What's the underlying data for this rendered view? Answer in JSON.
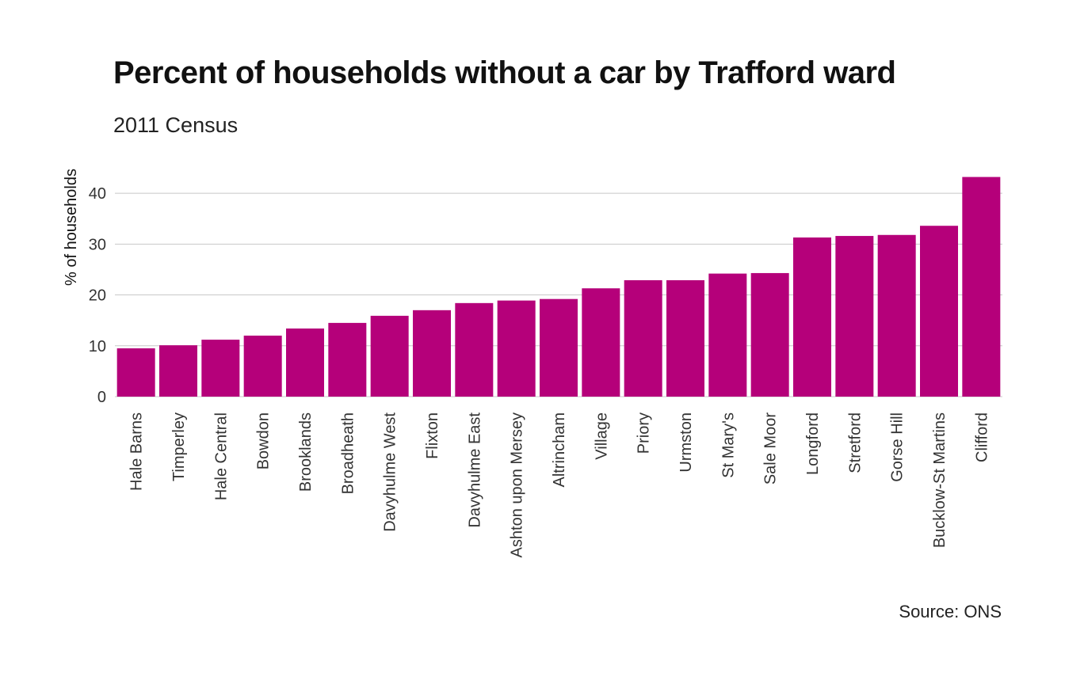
{
  "chart_data": {
    "type": "bar",
    "title": "Percent of households without a car by Trafford ward",
    "subtitle": "2011 Census",
    "caption": "Source: ONS",
    "xlabel": "",
    "ylabel": "% of households",
    "ylim": [
      0,
      45
    ],
    "yticks": [
      0,
      10,
      20,
      30,
      40
    ],
    "grid": true,
    "bar_color": "#b5007a",
    "categories": [
      "Hale Barns",
      "Timperley",
      "Hale Central",
      "Bowdon",
      "Brooklands",
      "Broadheath",
      "Davyhulme West",
      "Flixton",
      "Davyhulme East",
      "Ashton upon Mersey",
      "Altrincham",
      "Village",
      "Priory",
      "Urmston",
      "St Mary's",
      "Sale Moor",
      "Longford",
      "Stretford",
      "Gorse Hill",
      "Bucklow-St Martins",
      "Clifford"
    ],
    "values": [
      9.5,
      10.1,
      11.2,
      12.0,
      13.4,
      14.5,
      15.9,
      17.0,
      18.4,
      18.9,
      19.2,
      21.3,
      22.9,
      22.9,
      24.2,
      24.3,
      31.3,
      31.6,
      31.8,
      33.6,
      43.2
    ]
  }
}
